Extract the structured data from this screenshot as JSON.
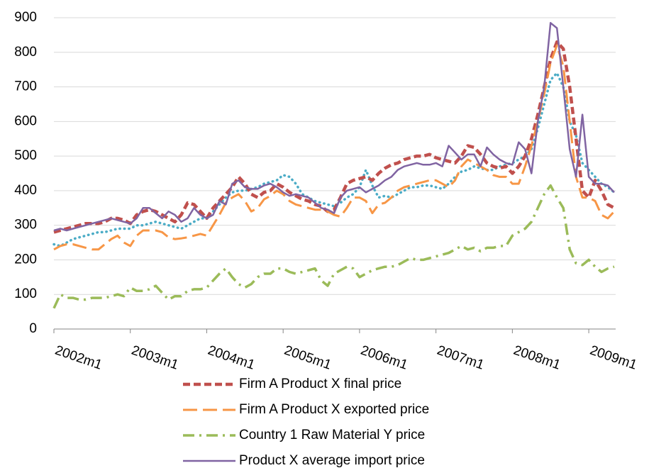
{
  "chart_data": {
    "type": "line",
    "categories": [
      "2002m1",
      null,
      null,
      null,
      null,
      null,
      null,
      null,
      null,
      null,
      null,
      null,
      "2003m1",
      null,
      null,
      null,
      null,
      null,
      null,
      null,
      null,
      null,
      null,
      null,
      "2004m1",
      null,
      null,
      null,
      null,
      null,
      null,
      null,
      null,
      null,
      null,
      null,
      "2005m1",
      null,
      null,
      null,
      null,
      null,
      null,
      null,
      null,
      null,
      null,
      null,
      "2006m1",
      null,
      null,
      null,
      null,
      null,
      null,
      null,
      null,
      null,
      null,
      null,
      "2007m1",
      null,
      null,
      null,
      null,
      null,
      null,
      null,
      null,
      null,
      null,
      null,
      "2008m1",
      null,
      null,
      null,
      null,
      null,
      null,
      null,
      null,
      null,
      null,
      null,
      "2009m1",
      null,
      null,
      null,
      null
    ],
    "ylim": [
      0,
      900
    ],
    "yticks": [
      0,
      100,
      200,
      300,
      400,
      500,
      600,
      700,
      800,
      900
    ],
    "grid": true,
    "series": [
      {
        "name": null,
        "color": "#4bacc6",
        "dash": "dot",
        "values": [
          245,
          240,
          250,
          260,
          265,
          270,
          275,
          280,
          280,
          285,
          290,
          290,
          290,
          300,
          300,
          305,
          310,
          305,
          300,
          295,
          290,
          300,
          310,
          320,
          320,
          340,
          360,
          380,
          395,
          400,
          400,
          405,
          410,
          420,
          425,
          430,
          445,
          440,
          420,
          390,
          380,
          370,
          365,
          360,
          355,
          365,
          380,
          390,
          410,
          460,
          415,
          380,
          385,
          380,
          390,
          400,
          410,
          410,
          415,
          415,
          410,
          405,
          420,
          440,
          455,
          460,
          470,
          465,
          460,
          460,
          470,
          475,
          480,
          490,
          500,
          520,
          580,
          650,
          720,
          740,
          700,
          600,
          560,
          480,
          460,
          440,
          420,
          410,
          395
        ]
      },
      {
        "name": "Firm A Product X final price",
        "color": "#c0504d",
        "dash": "dash",
        "values": [
          280,
          285,
          290,
          295,
          300,
          305,
          305,
          305,
          310,
          320,
          320,
          315,
          305,
          330,
          340,
          345,
          340,
          330,
          320,
          310,
          330,
          365,
          360,
          340,
          320,
          350,
          370,
          390,
          410,
          440,
          420,
          390,
          380,
          395,
          400,
          420,
          410,
          395,
          385,
          375,
          370,
          360,
          355,
          340,
          345,
          380,
          420,
          430,
          435,
          440,
          430,
          450,
          465,
          475,
          480,
          490,
          495,
          500,
          500,
          505,
          495,
          490,
          485,
          480,
          500,
          530,
          525,
          505,
          480,
          470,
          465,
          470,
          450,
          470,
          500,
          550,
          620,
          700,
          780,
          830,
          810,
          700,
          550,
          400,
          380,
          430,
          400,
          360,
          350
        ]
      },
      {
        "name": "Firm A Product X exported price",
        "color": "#f79646",
        "dash": "longdash",
        "values": [
          230,
          240,
          245,
          245,
          240,
          235,
          230,
          230,
          245,
          260,
          270,
          250,
          240,
          270,
          285,
          285,
          285,
          280,
          265,
          260,
          262,
          265,
          270,
          275,
          270,
          300,
          330,
          365,
          380,
          390,
          370,
          340,
          350,
          375,
          385,
          400,
          390,
          370,
          360,
          355,
          350,
          345,
          345,
          340,
          330,
          325,
          350,
          380,
          380,
          370,
          335,
          360,
          365,
          380,
          400,
          410,
          415,
          420,
          425,
          430,
          430,
          420,
          410,
          430,
          470,
          490,
          480,
          470,
          460,
          445,
          440,
          440,
          420,
          420,
          470,
          530,
          600,
          680,
          770,
          820,
          760,
          600,
          440,
          380,
          380,
          370,
          330,
          320,
          340
        ]
      },
      {
        "name": "Country 1 Raw Material Y price",
        "color": "#9bbb59",
        "dash": "dashdot",
        "values": [
          60,
          100,
          90,
          90,
          85,
          85,
          90,
          90,
          90,
          95,
          100,
          95,
          120,
          110,
          110,
          115,
          125,
          105,
          85,
          95,
          95,
          110,
          115,
          115,
          120,
          140,
          160,
          175,
          150,
          130,
          120,
          130,
          150,
          160,
          160,
          175,
          175,
          165,
          160,
          165,
          170,
          175,
          140,
          125,
          160,
          170,
          180,
          175,
          150,
          160,
          170,
          175,
          180,
          180,
          185,
          195,
          205,
          200,
          200,
          205,
          210,
          215,
          220,
          230,
          240,
          230,
          235,
          225,
          235,
          235,
          240,
          240,
          270,
          280,
          290,
          310,
          350,
          390,
          415,
          380,
          350,
          230,
          190,
          185,
          200,
          180,
          165,
          175,
          180
        ]
      },
      {
        "name": "Product X average import price",
        "color": "#8064a2",
        "dash": "solid",
        "values": [
          285,
          290,
          285,
          290,
          295,
          300,
          305,
          310,
          315,
          320,
          315,
          310,
          305,
          320,
          350,
          350,
          335,
          320,
          340,
          330,
          310,
          320,
          350,
          330,
          320,
          330,
          370,
          360,
          420,
          430,
          410,
          405,
          405,
          415,
          420,
          410,
          395,
          385,
          390,
          385,
          380,
          365,
          350,
          345,
          335,
          380,
          400,
          405,
          410,
          395,
          405,
          415,
          430,
          440,
          460,
          470,
          475,
          480,
          475,
          475,
          480,
          470,
          530,
          510,
          490,
          505,
          505,
          470,
          525,
          505,
          490,
          480,
          475,
          540,
          520,
          450,
          600,
          700,
          885,
          870,
          700,
          520,
          440,
          620,
          440,
          420,
          420,
          415,
          395
        ]
      }
    ]
  }
}
